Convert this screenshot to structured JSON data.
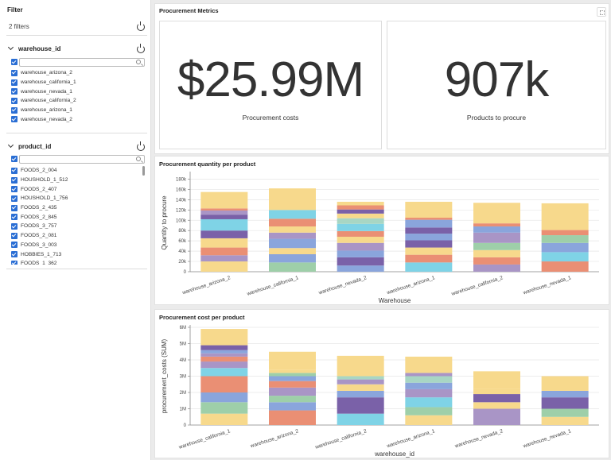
{
  "sidebar": {
    "title": "Filter",
    "count": "2 filters",
    "filters": [
      {
        "name": "warehouse_id",
        "items": [
          "warehouse_arizona_2",
          "warehouse_california_1",
          "warehouse_nevada_1",
          "warehouse_california_2",
          "warehouse_arizona_1",
          "warehouse_nevada_2"
        ]
      },
      {
        "name": "product_id",
        "items": [
          "FOODS_2_004",
          "HOUSHOLD_1_512",
          "FOODS_2_407",
          "HOUSHOLD_1_756",
          "FOODS_2_435",
          "FOODS_2_845",
          "FOODS_3_757",
          "FOODS_2_081",
          "FOODS_3_003",
          "HOBBIES_1_713",
          "FOODS_1_362"
        ]
      }
    ]
  },
  "metrics": {
    "title": "Procurement Metrics",
    "kpis": [
      {
        "value": "$25.99M",
        "label": "Procurement costs"
      },
      {
        "value": "907k",
        "label": "Products to procure"
      }
    ]
  },
  "palette": [
    "#7fd3e6",
    "#f7d98c",
    "#ea8f74",
    "#9ecfa9",
    "#8aa5dc",
    "#a995c6",
    "#7a61a8",
    "#a8d6c4"
  ],
  "chart_data": [
    {
      "type": "bar",
      "stacked": true,
      "title": "Procurement quantity per product",
      "xlabel": "Warehouse",
      "ylabel": "Quantity to procure",
      "ylim": [
        0,
        190000
      ],
      "yticks": [
        0,
        20000,
        40000,
        60000,
        80000,
        100000,
        120000,
        140000,
        160000,
        180000
      ],
      "yticklabels": [
        "0",
        "20k",
        "40k",
        "60k",
        "80k",
        "100k",
        "120k",
        "140k",
        "160k",
        "180k"
      ],
      "grid": true,
      "categories": [
        "warehouse_arizona_2",
        "warehouse_california_1",
        "warehouse_nevada_2",
        "warehouse_arizona_1",
        "warehouse_california_2",
        "warehouse_nevada_1"
      ],
      "stacks": [
        [
          [
            20000,
            "#f7d98c"
          ],
          [
            12000,
            "#a995c6"
          ],
          [
            15000,
            "#ea8f74"
          ],
          [
            18000,
            "#f7d98c"
          ],
          [
            15000,
            "#7a61a8"
          ],
          [
            22000,
            "#7fd3e6"
          ],
          [
            9000,
            "#7a61a8"
          ],
          [
            8000,
            "#a995c6"
          ],
          [
            4000,
            "#ea8f74"
          ],
          [
            32000,
            "#f7d98c"
          ]
        ],
        [
          [
            18000,
            "#9ecfa9"
          ],
          [
            16000,
            "#8aa5dc"
          ],
          [
            12000,
            "#f7d98c"
          ],
          [
            18000,
            "#8aa5dc"
          ],
          [
            12000,
            "#a995c6"
          ],
          [
            12000,
            "#f7d98c"
          ],
          [
            15000,
            "#ea8f74"
          ],
          [
            17000,
            "#7fd3e6"
          ],
          [
            42000,
            "#f7d98c"
          ]
        ],
        [
          [
            12000,
            "#8aa5dc"
          ],
          [
            16000,
            "#7a61a8"
          ],
          [
            13000,
            "#8aa5dc"
          ],
          [
            15000,
            "#a995c6"
          ],
          [
            12000,
            "#f7d98c"
          ],
          [
            11000,
            "#ea8f74"
          ],
          [
            14000,
            "#7fd3e6"
          ],
          [
            11000,
            "#a8d6c4"
          ],
          [
            9000,
            "#f7d98c"
          ],
          [
            8000,
            "#7a61a8"
          ],
          [
            8000,
            "#ea8f74"
          ],
          [
            7000,
            "#f7d98c"
          ]
        ],
        [
          [
            18000,
            "#7fd3e6"
          ],
          [
            15000,
            "#ea8f74"
          ],
          [
            14000,
            "#f7d98c"
          ],
          [
            14000,
            "#7a61a8"
          ],
          [
            13000,
            "#8aa5dc"
          ],
          [
            12000,
            "#7a61a8"
          ],
          [
            15000,
            "#8aa5dc"
          ],
          [
            4000,
            "#ea8f74"
          ],
          [
            31000,
            "#f7d98c"
          ]
        ],
        [
          [
            14000,
            "#a995c6"
          ],
          [
            14000,
            "#ea8f74"
          ],
          [
            14000,
            "#f7d98c"
          ],
          [
            14000,
            "#9ecfa9"
          ],
          [
            20000,
            "#a995c6"
          ],
          [
            12000,
            "#8aa5dc"
          ],
          [
            6000,
            "#ea8f74"
          ],
          [
            40000,
            "#f7d98c"
          ]
        ],
        [
          [
            20000,
            "#ea8f74"
          ],
          [
            18000,
            "#7fd3e6"
          ],
          [
            18000,
            "#8aa5dc"
          ],
          [
            15000,
            "#9ecfa9"
          ],
          [
            10000,
            "#ea8f74"
          ],
          [
            52000,
            "#f7d98c"
          ]
        ]
      ]
    },
    {
      "type": "bar",
      "stacked": true,
      "title": "Procurement cost per product",
      "xlabel": "warehouse_id",
      "ylabel": "procurement_costs (SUM)",
      "ylim": [
        0,
        6000000
      ],
      "yticks": [
        0,
        1000000,
        2000000,
        3000000,
        4000000,
        5000000,
        6000000
      ],
      "yticklabels": [
        "0",
        "1M",
        "2M",
        "3M",
        "4M",
        "5M",
        "6M"
      ],
      "grid": true,
      "categories": [
        "warehouse_california_1",
        "warehouse_arizona_2",
        "warehouse_california_2",
        "warehouse_arizona_1",
        "warehouse_nevada_2",
        "warehouse_nevada_1"
      ],
      "stacks": [
        [
          [
            700000,
            "#f7d98c"
          ],
          [
            700000,
            "#9ecfa9"
          ],
          [
            600000,
            "#8aa5dc"
          ],
          [
            1000000,
            "#ea8f74"
          ],
          [
            500000,
            "#7fd3e6"
          ],
          [
            400000,
            "#a995c6"
          ],
          [
            300000,
            "#ea8f74"
          ],
          [
            200000,
            "#a995c6"
          ],
          [
            200000,
            "#8aa5dc"
          ],
          [
            300000,
            "#7a61a8"
          ],
          [
            1000000,
            "#f7d98c"
          ]
        ],
        [
          [
            900000,
            "#ea8f74"
          ],
          [
            500000,
            "#8aa5dc"
          ],
          [
            400000,
            "#9ecfa9"
          ],
          [
            500000,
            "#a995c6"
          ],
          [
            400000,
            "#ea8f74"
          ],
          [
            300000,
            "#8aa5dc"
          ],
          [
            200000,
            "#9ecfa9"
          ],
          [
            200000,
            "#f7d98c"
          ],
          [
            1100000,
            "#f7d98c"
          ]
        ],
        [
          [
            700000,
            "#7fd3e6"
          ],
          [
            1000000,
            "#7a61a8"
          ],
          [
            400000,
            "#8aa5dc"
          ],
          [
            400000,
            "#f7d98c"
          ],
          [
            300000,
            "#a995c6"
          ],
          [
            200000,
            "#a8d6c4"
          ],
          [
            1250000,
            "#f7d98c"
          ]
        ],
        [
          [
            600000,
            "#f7d98c"
          ],
          [
            500000,
            "#9ecfa9"
          ],
          [
            600000,
            "#7fd3e6"
          ],
          [
            500000,
            "#a995c6"
          ],
          [
            400000,
            "#8aa5dc"
          ],
          [
            400000,
            "#a8d6c4"
          ],
          [
            200000,
            "#a995c6"
          ],
          [
            1000000,
            "#f7d98c"
          ]
        ],
        [
          [
            1000000,
            "#a995c6"
          ],
          [
            400000,
            "#f7d98c"
          ],
          [
            500000,
            "#7a61a8"
          ],
          [
            300000,
            "#f7d98c"
          ],
          [
            1100000,
            "#f7d98c"
          ]
        ],
        [
          [
            500000,
            "#f7d98c"
          ],
          [
            500000,
            "#9ecfa9"
          ],
          [
            700000,
            "#7a61a8"
          ],
          [
            400000,
            "#8aa5dc"
          ],
          [
            900000,
            "#f7d98c"
          ]
        ]
      ]
    }
  ]
}
